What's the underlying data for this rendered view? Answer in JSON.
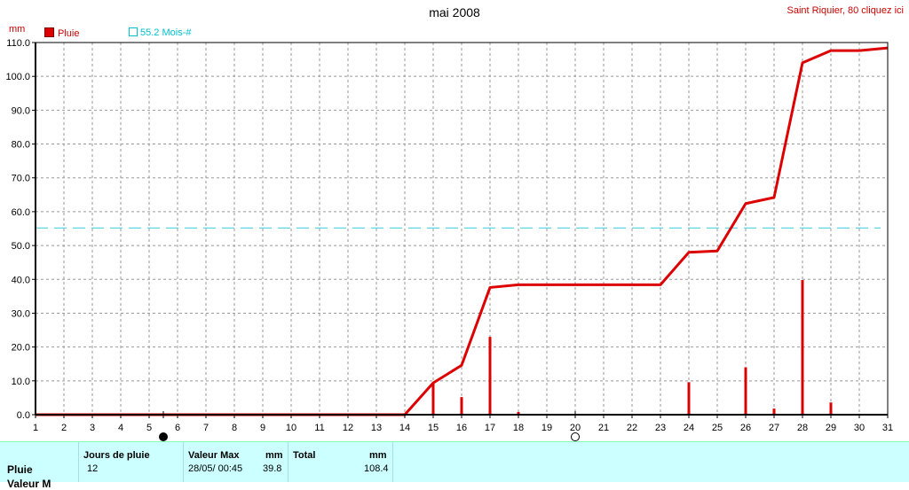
{
  "header": {
    "title": "mai 2008",
    "station_link": "Saint Riquier, 80 cliquez ici"
  },
  "legend": {
    "rain_label": "Pluie",
    "average_label": "55.2 Mois-#"
  },
  "colors": {
    "rain": "#dd0000",
    "average": "#33ccdd",
    "grid": "#999999",
    "summary_bg": "#ccffff"
  },
  "chart_data": {
    "type": "line",
    "title": "mai 2008",
    "ylabel": "mm",
    "xlabel": "",
    "xlim": [
      1,
      31
    ],
    "ylim": [
      0,
      110
    ],
    "x_ticks": [
      1,
      2,
      3,
      4,
      5,
      6,
      7,
      8,
      9,
      10,
      11,
      12,
      13,
      14,
      15,
      16,
      17,
      18,
      19,
      20,
      21,
      22,
      23,
      24,
      25,
      26,
      27,
      28,
      29,
      30,
      31
    ],
    "y_ticks": [
      "0.0",
      "10.0",
      "20.0",
      "30.0",
      "40.0",
      "50.0",
      "60.0",
      "70.0",
      "80.0",
      "90.0",
      "100.0",
      "110.0"
    ],
    "grid": true,
    "legend_position": "top-left",
    "series": [
      {
        "name": "Pluie",
        "kind": "cumulative-line",
        "x": [
          1,
          2,
          3,
          4,
          5,
          6,
          7,
          8,
          9,
          10,
          11,
          12,
          13,
          14,
          15,
          16,
          17,
          18,
          19,
          20,
          21,
          22,
          23,
          24,
          25,
          26,
          27,
          28,
          29,
          30,
          31
        ],
        "values": [
          0,
          0,
          0,
          0,
          0,
          0,
          0,
          0,
          0,
          0,
          0,
          0,
          0,
          0,
          9.4,
          14.6,
          37.6,
          38.4,
          38.4,
          38.4,
          38.4,
          38.4,
          38.4,
          48.0,
          48.4,
          62.4,
          64.2,
          104.0,
          107.6,
          107.6,
          108.4
        ]
      },
      {
        "name": "Pluie",
        "kind": "daily-bars",
        "x": [
          15,
          16,
          17,
          18,
          24,
          26,
          27,
          28,
          29
        ],
        "values": [
          9.4,
          5.2,
          23.0,
          0.8,
          9.6,
          14.0,
          1.8,
          39.8,
          3.6
        ]
      },
      {
        "name": "55.2 Mois-#",
        "kind": "reference-line",
        "value": 55.2
      }
    ],
    "moon_phases": [
      {
        "day": 5.5,
        "phase": "new"
      },
      {
        "day": 20,
        "phase": "full"
      }
    ]
  },
  "summary": {
    "row_label": "Pluie",
    "row_label_2": "Valeur M",
    "rain_days_header": "Jours de pluie",
    "rain_days_value": "12",
    "max_header": "Valeur Max",
    "max_unit": "mm",
    "max_date": "28/05/  00:45",
    "max_value": "39.8",
    "total_header": "Total",
    "total_unit": "mm",
    "total_value": "108.4"
  }
}
